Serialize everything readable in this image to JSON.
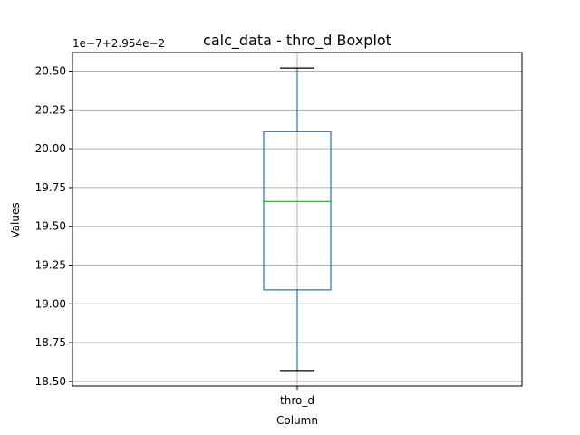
{
  "chart_data": {
    "type": "box",
    "title": "calc_data - thro_d Boxplot",
    "xlabel": "Column",
    "ylabel": "Values",
    "offset_label": "1e−7+2.954e−2",
    "categories": [
      "thro_d"
    ],
    "boxes": [
      {
        "name": "thro_d",
        "whisker_low": 18.57,
        "q1": 19.09,
        "median": 19.66,
        "q3": 20.11,
        "whisker_high": 20.52
      }
    ],
    "ylim": [
      18.47,
      20.62
    ],
    "yticks": [
      18.5,
      18.75,
      19.0,
      19.25,
      19.5,
      19.75,
      20.0,
      20.25,
      20.5
    ],
    "ytick_labels": [
      "18.50",
      "18.75",
      "19.00",
      "19.25",
      "19.50",
      "19.75",
      "20.00",
      "20.25",
      "20.50"
    ],
    "grid": true,
    "colors": {
      "box": "#1f77b4",
      "median": "#2ca02c",
      "caps": "#000000",
      "grid": "#b0b0b0"
    }
  }
}
